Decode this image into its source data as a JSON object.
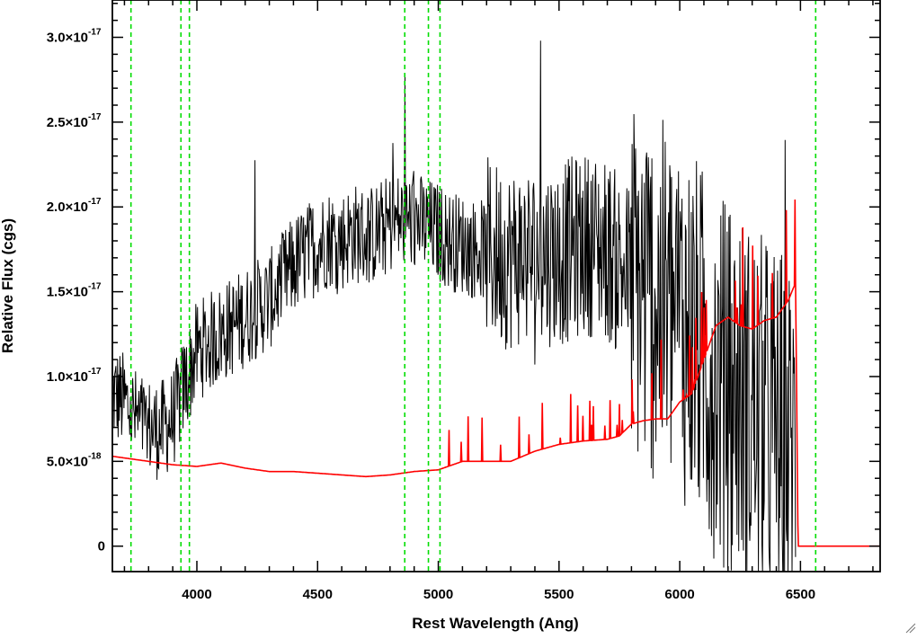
{
  "chart_data": {
    "type": "line",
    "xlabel": "Rest Wavelength (Ang)",
    "ylabel": "Relative Flux (cgs)",
    "xlim": [
      3650,
      6830
    ],
    "ylim": [
      -1.5e-18,
      3.22e-17
    ],
    "x_ticks": [
      {
        "value": 4000,
        "label": "4000"
      },
      {
        "value": 4500,
        "label": "4500"
      },
      {
        "value": 5000,
        "label": "5000"
      },
      {
        "value": 5500,
        "label": "5500"
      },
      {
        "value": 6000,
        "label": "6000"
      },
      {
        "value": 6500,
        "label": "6500"
      }
    ],
    "y_ticks": [
      {
        "value": 0,
        "label": "0",
        "exp": ""
      },
      {
        "value": 5e-18,
        "label": "5.0×10",
        "exp": "-18"
      },
      {
        "value": 1e-17,
        "label": "1.0×10",
        "exp": "-17"
      },
      {
        "value": 1.5e-17,
        "label": "1.5×10",
        "exp": "-17"
      },
      {
        "value": 2e-17,
        "label": "2.0×10",
        "exp": "-17"
      },
      {
        "value": 2.5e-17,
        "label": "2.5×10",
        "exp": "-17"
      },
      {
        "value": 3e-17,
        "label": "3.0×10",
        "exp": "-17"
      }
    ],
    "vertical_lines": [
      3727,
      3934,
      3969,
      4861,
      4959,
      5007,
      6563
    ],
    "colors": {
      "spectrum": "#000000",
      "model": "#ff0000",
      "lines": "#00dd00"
    },
    "series": [
      {
        "key": "observed_spectrum",
        "style": "black noisy",
        "x": [
          3650,
          3700,
          3750,
          3800,
          3850,
          3900,
          3950,
          4000,
          4050,
          4100,
          4150,
          4200,
          4250,
          4300,
          4350,
          4400,
          4450,
          4500,
          4550,
          4600,
          4650,
          4700,
          4750,
          4800,
          4850,
          4900,
          4950,
          5000,
          5050,
          5100,
          5150,
          5200,
          5250,
          5300,
          5350,
          5400,
          5450,
          5500,
          5550,
          5600,
          5650,
          5700,
          5750,
          5800,
          5850,
          5900,
          5950,
          6000,
          6050,
          6100,
          6150,
          6200,
          6250,
          6300,
          6350,
          6400,
          6450,
          6480
        ],
        "y": [
          9e-18,
          8.5e-18,
          7.5e-18,
          7e-18,
          6.8e-18,
          7.5e-18,
          9.5e-18,
          1.15e-17,
          1.2e-17,
          1.25e-17,
          1.3e-17,
          1.35e-17,
          1.4e-17,
          1.45e-17,
          1.55e-17,
          1.65e-17,
          1.72e-17,
          1.78e-17,
          1.82e-17,
          1.8e-17,
          1.85e-17,
          1.82e-17,
          1.85e-17,
          1.9e-17,
          1.92e-17,
          1.92e-17,
          1.88e-17,
          1.85e-17,
          1.8e-17,
          1.78e-17,
          1.75e-17,
          1.75e-17,
          1.72e-17,
          1.7e-17,
          1.72e-17,
          1.7e-17,
          1.72e-17,
          1.72e-17,
          1.75e-17,
          1.78e-17,
          1.78e-17,
          1.75e-17,
          1.65e-17,
          1.6e-17,
          1.5e-17,
          1.45e-17,
          1.4e-17,
          1.35e-17,
          1.25e-17,
          1.15e-17,
          1e-17,
          9.5e-18,
          9e-18,
          8e-18,
          7.5e-18,
          7e-18,
          6e-18,
          5.5e-18
        ]
      },
      {
        "key": "model_fit",
        "style": "red",
        "x": [
          3650,
          3700,
          3800,
          3900,
          4000,
          4100,
          4200,
          4300,
          4400,
          4500,
          4600,
          4700,
          4800,
          4900,
          5000,
          5100,
          5200,
          5300,
          5400,
          5500,
          5600,
          5700,
          5750,
          5800,
          5850,
          5900,
          5950,
          6000,
          6050,
          6100,
          6150,
          6200,
          6250,
          6300,
          6350,
          6400,
          6450,
          6470,
          6480,
          6490,
          6600,
          6830
        ],
        "y": [
          5.3e-18,
          5.2e-18,
          5e-18,
          4.8e-18,
          4.7e-18,
          4.9e-18,
          4.6e-18,
          4.4e-18,
          4.4e-18,
          4.3e-18,
          4.2e-18,
          4.1e-18,
          4.2e-18,
          4.4e-18,
          4.5e-18,
          5e-18,
          5e-18,
          5e-18,
          5.6e-18,
          6e-18,
          6.2e-18,
          6.3e-18,
          6.5e-18,
          7.2e-18,
          7.4e-18,
          7.5e-18,
          7.5e-18,
          8.5e-18,
          9e-18,
          1.1e-17,
          1.3e-17,
          1.35e-17,
          1.3e-17,
          1.28e-17,
          1.33e-17,
          1.35e-17,
          1.45e-17,
          1.52e-17,
          1.55e-17,
          0,
          0,
          0
        ]
      }
    ]
  }
}
